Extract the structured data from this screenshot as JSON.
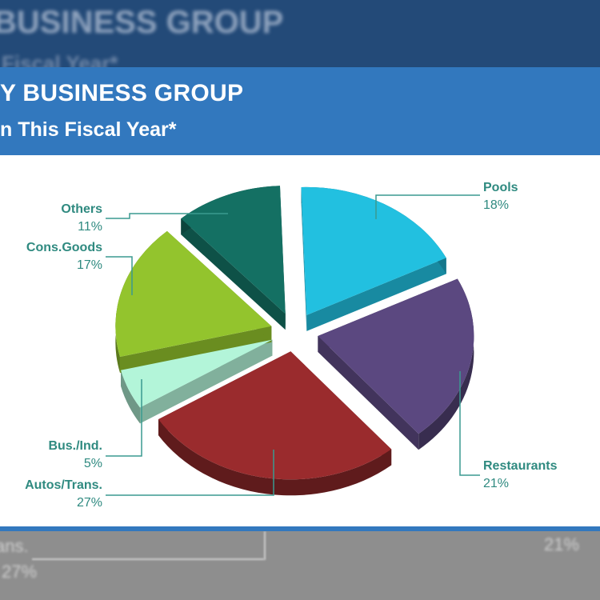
{
  "background": {
    "title": "BUSINESS GROUP",
    "subtitle": "Fiscal Year*",
    "bottom_left_1": "ans.",
    "bottom_left_2": "27%",
    "bottom_right": "21%"
  },
  "panel": {
    "title": "Y BUSINESS GROUP",
    "subtitle": "n This Fiscal Year*"
  },
  "colors": {
    "header": "#3278be",
    "label": "#2f8a80",
    "pools": "#22c0e0",
    "restaurants": "#5b4880",
    "autos_trans": "#9a2b2d",
    "bus_ind": "#b3f5d9",
    "cons_goods": "#93c42d",
    "others": "#147063"
  },
  "chart_data": {
    "type": "pie",
    "title": "",
    "series": [
      {
        "categories": [
          "Pools",
          "Restaurants",
          "Autos/Trans.",
          "Bus./Ind.",
          "Cons.Goods",
          "Others"
        ],
        "values": [
          18,
          21,
          27,
          5,
          17,
          11
        ],
        "value_labels": [
          "18%",
          "21%",
          "27%",
          "5%",
          "17%",
          "11%"
        ]
      }
    ],
    "exploded": true,
    "three_d": true,
    "legend": "none"
  }
}
